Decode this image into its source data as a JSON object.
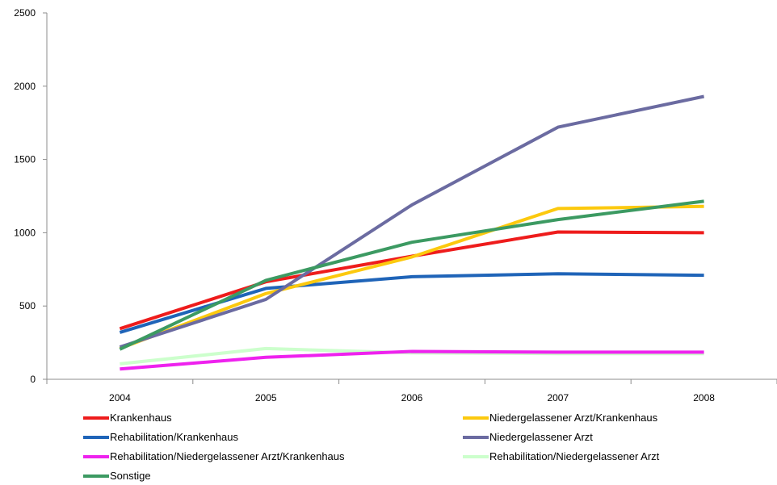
{
  "chart_data": {
    "type": "line",
    "categories": [
      "2004",
      "2005",
      "2006",
      "2007",
      "2008"
    ],
    "ylim": [
      0,
      2500
    ],
    "yticks": [
      0,
      500,
      1000,
      1500,
      2000,
      2500
    ],
    "grid": false,
    "legend_placement": "bottom",
    "series": [
      {
        "name": "Krankenhaus",
        "color": "#ee1c1c",
        "values": [
          345,
          665,
          840,
          1005,
          1000
        ]
      },
      {
        "name": "Niedergelassener Arzt/Krankenhaus",
        "color": "#fcc90e",
        "values": [
          210,
          585,
          835,
          1165,
          1180
        ]
      },
      {
        "name": "Rehabilitation/Krankenhaus",
        "color": "#1f64b8",
        "values": [
          320,
          620,
          700,
          720,
          710
        ]
      },
      {
        "name": "Niedergelassener Arzt",
        "color": "#6b6ba1",
        "values": [
          220,
          545,
          1190,
          1720,
          1930
        ]
      },
      {
        "name": "Rehabilitation/Niedergelassener Arzt/Krankenhaus",
        "color": "#ee22ee",
        "values": [
          70,
          150,
          190,
          185,
          185
        ]
      },
      {
        "name": "Rehabilitation/Niedergelassener Arzt",
        "color": "#ccffcc",
        "values": [
          105,
          210,
          180,
          175,
          175
        ]
      },
      {
        "name": "Sonstige",
        "color": "#3c9a62",
        "values": [
          205,
          675,
          935,
          1090,
          1215
        ]
      }
    ]
  }
}
